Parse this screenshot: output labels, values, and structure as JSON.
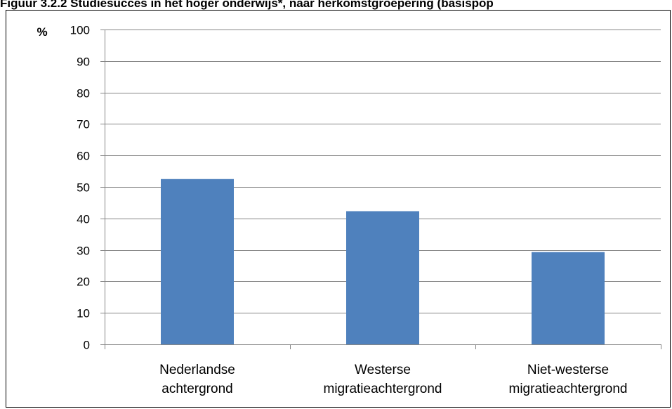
{
  "chart_data": {
    "type": "bar",
    "title": "Figuur 3.2.2 Studiesucces in het hoger onderwijs*, naar herkomstgroepering (basispop",
    "ylabel": "%",
    "xlabel": "",
    "categories": [
      [
        "Nederlandse",
        "achtergrond"
      ],
      [
        "Westerse",
        "migratieachtergrond"
      ],
      [
        "Niet-westerse",
        "migratieachtergrond"
      ]
    ],
    "values": [
      52.5,
      42.3,
      29.3
    ],
    "ylim": [
      0,
      100
    ],
    "yticks": [
      0,
      10,
      20,
      30,
      40,
      50,
      60,
      70,
      80,
      90,
      100
    ],
    "grid": true,
    "legend": "none",
    "colors": {
      "bar": "#4f81bd",
      "grid": "#868686",
      "axis": "#868686",
      "text": "#000000"
    }
  }
}
